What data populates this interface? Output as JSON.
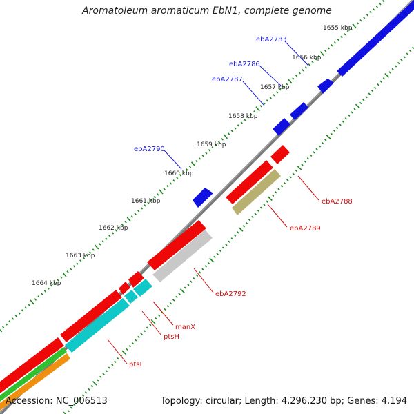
{
  "title": "Aromatoleum aromaticum EbN1, complete genome",
  "footer": {
    "accession": "Accession: NC_006513",
    "summary": "Topology: circular; Length: 4,296,230 bp; Genes: 4,194"
  },
  "colors": {
    "backbone": "#7a7a7a",
    "tick": "#1a8a1a",
    "blue_gene": "#1010e0",
    "red_gene": "#ee0808",
    "khaki_gene": "#b8b070",
    "gray_gene": "#c8c8c8",
    "cyan_gene": "#10c8c8",
    "green_gene": "#30c030",
    "orange_gene": "#f09010"
  },
  "scale_labels": [
    "1655 kbp",
    "1656 kbp",
    "1657 kbp",
    "1658 kbp",
    "1659 kbp",
    "1660 kbp",
    "1661 kbp",
    "1662 kbp",
    "1663 kbp",
    "1664 kbp"
  ],
  "gene_labels": {
    "ebA2783": "ebA2783",
    "ebA2786": "ebA2786",
    "ebA2787": "ebA2787",
    "ebA2790": "ebA2790",
    "ebA2788": "ebA2788",
    "ebA2789": "ebA2789",
    "ebA2792": "ebA2792",
    "manX": "manX",
    "ptsH": "ptsH",
    "ptsI": "ptsI"
  }
}
